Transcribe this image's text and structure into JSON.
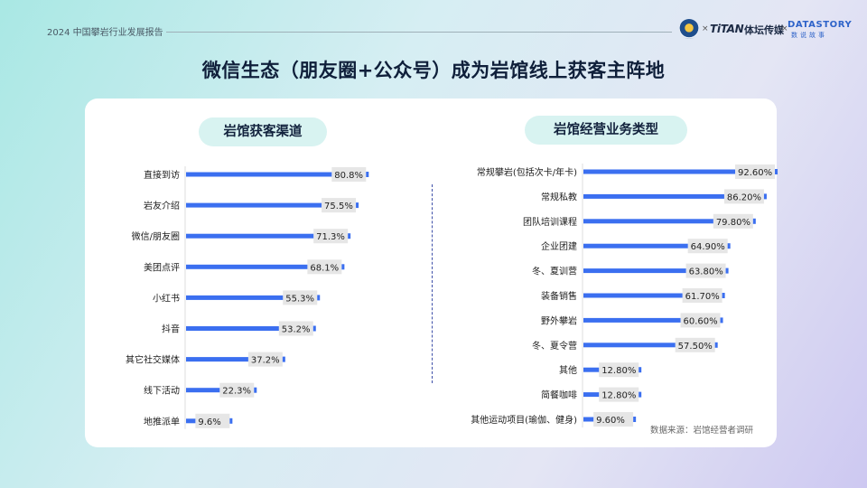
{
  "header": {
    "report_name": "2024 中国攀岩行业发展报告",
    "logos": {
      "separator": "×",
      "titan": "TiTAN",
      "titan_cn": "体坛传媒",
      "datastory": "DATASTORY",
      "datastory_cn": "数说故事"
    }
  },
  "page_title": "微信生态（朋友圈+公众号）成为岩馆线上获客主阵地",
  "source": "数据来源：岩馆经营者调研",
  "colors": {
    "bar": "#3b6ff0",
    "label_bg": "#e6e6e6",
    "pill_bg": "#d8f3f1"
  },
  "chart_data": [
    {
      "type": "bar",
      "orientation": "horizontal",
      "title": "岩馆获客渠道",
      "categories": [
        "直接到访",
        "岩友介绍",
        "微信/朋友圈",
        "美团点评",
        "小红书",
        "抖音",
        "其它社交媒体",
        "线下活动",
        "地推派单"
      ],
      "values": [
        80.8,
        75.5,
        71.3,
        68.1,
        55.3,
        53.2,
        37.2,
        22.3,
        9.6
      ],
      "value_labels": [
        "80.8%",
        "75.5%",
        "71.3%",
        "68.1%",
        "55.3%",
        "53.2%",
        "37.2%",
        "22.3%",
        "9.6%"
      ],
      "unit": "%",
      "xlim": [
        0,
        100
      ],
      "grid": false,
      "legend": "none"
    },
    {
      "type": "bar",
      "orientation": "horizontal",
      "title": "岩馆经营业务类型",
      "categories": [
        "常规攀岩(包括次卡/年卡)",
        "常规私教",
        "团队培训课程",
        "企业团建",
        "冬、夏训营",
        "装备销售",
        "野外攀岩",
        "冬、夏令营",
        "其他",
        "简餐咖啡",
        "其他运动项目(瑜伽、健身)"
      ],
      "values": [
        92.6,
        86.2,
        79.8,
        64.9,
        63.8,
        61.7,
        60.6,
        57.5,
        12.8,
        12.8,
        9.6
      ],
      "value_labels": [
        "92.60%",
        "86.20%",
        "79.80%",
        "64.90%",
        "63.80%",
        "61.70%",
        "60.60%",
        "57.50%",
        "12.80%",
        "12.80%",
        "9.60%"
      ],
      "unit": "%",
      "xlim": [
        0,
        100
      ],
      "grid": false,
      "legend": "none"
    }
  ]
}
